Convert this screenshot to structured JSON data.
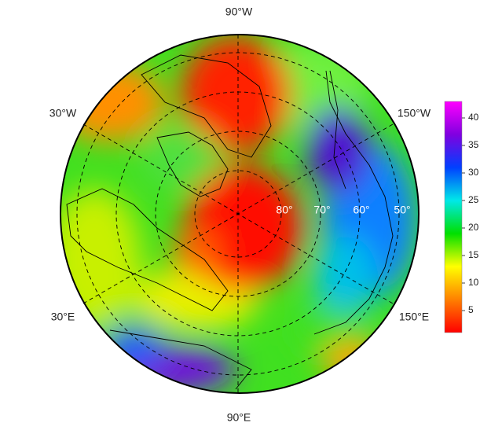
{
  "map": {
    "longitude_labels": [
      "90°W",
      "30°W",
      "150°W",
      "30°E",
      "150°E",
      "90°E"
    ],
    "latitude_labels": [
      "80°",
      "70°",
      "60°",
      "50°"
    ],
    "colorbar": {
      "range": [
        1,
        43
      ],
      "ticks": [
        5,
        10,
        15,
        20,
        25,
        30,
        35,
        40
      ],
      "colors": [
        "#ff0000",
        "#ff8000",
        "#ffff00",
        "#00e000",
        "#00e8e8",
        "#0040ff",
        "#8000e0",
        "#ff00ff"
      ]
    }
  }
}
